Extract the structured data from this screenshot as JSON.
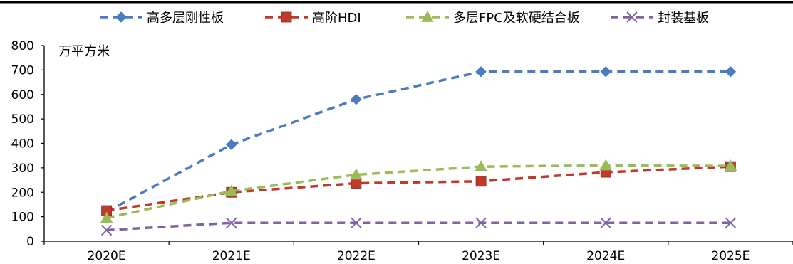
{
  "chart_data": {
    "type": "line",
    "categories": [
      "2020E",
      "2021E",
      "2022E",
      "2023E",
      "2024E",
      "2025E"
    ],
    "ylabel": "万平方米",
    "ylim": [
      0,
      800
    ],
    "yticks": [
      0,
      100,
      200,
      300,
      400,
      500,
      600,
      700,
      800
    ],
    "grid": false,
    "legend_position": "top",
    "series": [
      {
        "name": "高多层刚性板",
        "color": "#4a7dbf",
        "marker": "diamond",
        "values": [
          120,
          395,
          580,
          693,
          693,
          693
        ]
      },
      {
        "name": "高阶HDI",
        "color": "#c0392b",
        "marker": "square",
        "values": [
          125,
          200,
          237,
          245,
          282,
          305
        ]
      },
      {
        "name": "多层FPC及软硬结合板",
        "color": "#9bbb59",
        "marker": "triangle",
        "values": [
          95,
          205,
          272,
          305,
          310,
          308
        ]
      },
      {
        "name": "封装基板",
        "color": "#8064a2",
        "marker": "x",
        "values": [
          45,
          75,
          75,
          75,
          75,
          75
        ]
      }
    ]
  }
}
